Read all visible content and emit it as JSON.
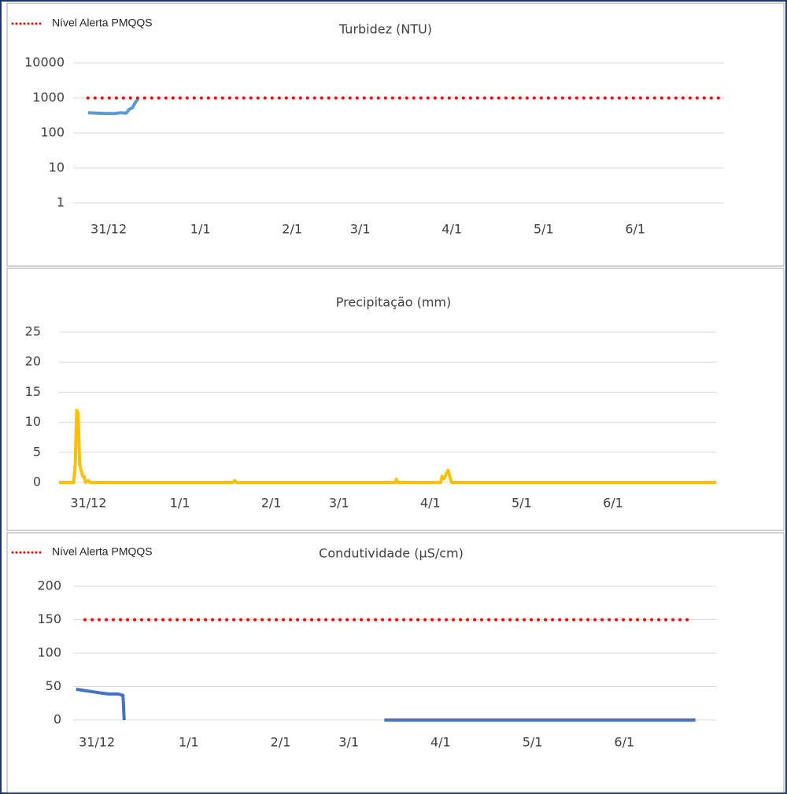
{
  "chart_data": [
    {
      "type": "line",
      "title": "Turbidez (NTU)",
      "log_y": true,
      "grid": true,
      "legend": "upper left",
      "ylim": [
        1,
        10000
      ],
      "yticks": [
        1,
        10,
        100,
        1000,
        10000
      ],
      "xlim": [
        -12,
        208
      ],
      "xticks": [
        {
          "value": 0,
          "label": "31/12"
        },
        {
          "value": 31,
          "label": "1/1"
        },
        {
          "value": 62,
          "label": "2/1"
        },
        {
          "value": 85,
          "label": "3/1"
        },
        {
          "value": 116,
          "label": "4/1"
        },
        {
          "value": 147,
          "label": "5/1"
        },
        {
          "value": 178,
          "label": "6/1"
        }
      ],
      "series": [
        {
          "color": "#5b9bd5",
          "x": [
            -7,
            -4,
            -1,
            2,
            4,
            6,
            7,
            8,
            9,
            10
          ],
          "values": [
            380,
            370,
            360,
            360,
            380,
            370,
            480,
            520,
            750,
            950
          ]
        },
        {
          "name": "Nível Alerta PMQQS",
          "color": "#ff0000",
          "style": "dotted",
          "x": [
            -7,
            207
          ],
          "values": [
            1000,
            1000
          ]
        }
      ]
    },
    {
      "type": "line",
      "title": "Precipitação (mm)",
      "grid": true,
      "ylim": [
        0,
        25
      ],
      "yticks": [
        0,
        5,
        10,
        15,
        20,
        25
      ],
      "xlim": [
        -10,
        213
      ],
      "xticks": [
        {
          "value": 0,
          "label": "31/12"
        },
        {
          "value": 31,
          "label": "1/1"
        },
        {
          "value": 62,
          "label": "2/1"
        },
        {
          "value": 85,
          "label": "3/1"
        },
        {
          "value": 116,
          "label": "4/1"
        },
        {
          "value": 147,
          "label": "5/1"
        },
        {
          "value": 178,
          "label": "6/1"
        }
      ],
      "series": [
        {
          "color": "#ffc000",
          "x": [
            -10,
            -5,
            -4.5,
            -4,
            -3.5,
            -3,
            -2,
            -1.5,
            -1,
            0,
            0.5,
            49,
            49.6,
            50.2,
            104,
            104.5,
            105,
            119.5,
            120,
            120.6,
            121.5,
            122,
            122.6,
            123.2,
            213
          ],
          "values": [
            0,
            0,
            3,
            12,
            11.5,
            3,
            1,
            1,
            0,
            0.3,
            0,
            0,
            0.3,
            0,
            0,
            0.5,
            0,
            0,
            1,
            0.6,
            1.5,
            2,
            1,
            0,
            0
          ]
        }
      ]
    },
    {
      "type": "line",
      "title": "Condutividade (µS/cm)",
      "grid": true,
      "legend": "upper left",
      "ylim": [
        0,
        200
      ],
      "yticks": [
        0,
        50,
        100,
        150,
        200
      ],
      "xlim": [
        -8,
        209
      ],
      "xticks": [
        {
          "value": 0,
          "label": "31/12"
        },
        {
          "value": 31,
          "label": "1/1"
        },
        {
          "value": 62,
          "label": "2/1"
        },
        {
          "value": 85,
          "label": "3/1"
        },
        {
          "value": 116,
          "label": "4/1"
        },
        {
          "value": 147,
          "label": "5/1"
        },
        {
          "value": 178,
          "label": "6/1"
        }
      ],
      "series": [
        {
          "color": "#4472c4",
          "x": [
            -7,
            -4,
            -1,
            2,
            4,
            7,
            8.8,
            9,
            9.2,
            40,
            97,
            202
          ],
          "values": [
            46,
            44,
            42,
            40,
            39,
            39,
            37,
            20,
            0,
            null,
            0,
            0
          ]
        },
        {
          "name": "Nível Alerta PMQQS",
          "color": "#ff0000",
          "style": "dotted",
          "x": [
            -4,
            200
          ],
          "values": [
            150,
            150
          ]
        }
      ]
    }
  ]
}
